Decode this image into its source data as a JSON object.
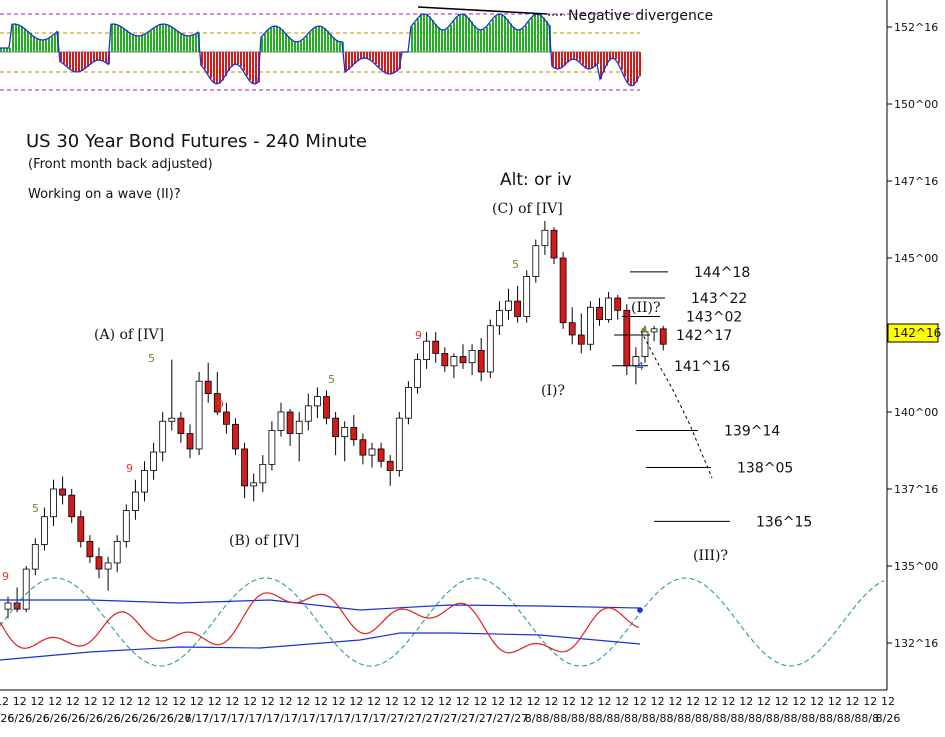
{
  "chart_data": {
    "type": "candlestick",
    "title": "US 30 Year Bond Futures - 240 Minute",
    "subtitle": "(Front month back adjusted)",
    "note": "Working on a wave (II)?",
    "current_price": "142^16",
    "y_ticks": [
      "152^16",
      "150^00",
      "147^16",
      "145^00",
      "142^16",
      "140^00",
      "137^16",
      "135^00",
      "132^16"
    ],
    "x_tick_top": "12",
    "x_tick_labels": [
      "6/26",
      "6/26",
      "6/26",
      "6/26",
      "6/26",
      "6/26",
      "6/26",
      "6/26",
      "6/26",
      "6/26",
      "6/26",
      "7/17",
      "7/17",
      "7/17",
      "7/17",
      "7/17",
      "7/17",
      "7/17",
      "7/17",
      "7/17",
      "7/17",
      "7/17",
      "7/27",
      "7/27",
      "7/27",
      "7/27",
      "7/27",
      "7/27",
      "7/27",
      "7/27",
      "8/8",
      "8/8",
      "8/8",
      "8/8",
      "8/8",
      "8/8",
      "8/8",
      "8/8",
      "8/8",
      "8/8",
      "8/8",
      "8/8",
      "8/8",
      "8/8",
      "8/8",
      "8/8",
      "8/8",
      "8/8",
      "8/8",
      "8/8",
      "8/26"
    ],
    "ylim": [
      131.5,
      153.5
    ],
    "candles": [
      [
        133.6,
        134.0,
        133.3,
        133.8
      ],
      [
        133.8,
        134.3,
        133.5,
        133.6
      ],
      [
        133.6,
        135.0,
        133.5,
        134.9
      ],
      [
        134.9,
        135.9,
        134.7,
        135.7
      ],
      [
        135.7,
        136.9,
        135.5,
        136.6
      ],
      [
        136.6,
        137.8,
        136.3,
        137.5
      ],
      [
        137.5,
        137.9,
        137.0,
        137.3
      ],
      [
        137.3,
        137.5,
        136.4,
        136.6
      ],
      [
        136.6,
        136.8,
        135.6,
        135.8
      ],
      [
        135.8,
        136.0,
        135.1,
        135.3
      ],
      [
        135.3,
        135.6,
        134.6,
        134.9
      ],
      [
        134.9,
        135.3,
        134.2,
        135.1
      ],
      [
        135.1,
        136.0,
        134.8,
        135.8
      ],
      [
        135.8,
        137.0,
        135.6,
        136.8
      ],
      [
        136.8,
        137.8,
        136.5,
        137.4
      ],
      [
        137.4,
        138.4,
        137.1,
        138.1
      ],
      [
        138.1,
        139.0,
        137.8,
        138.7
      ],
      [
        138.7,
        140.0,
        138.4,
        139.7
      ],
      [
        139.7,
        141.7,
        139.4,
        139.8
      ],
      [
        139.8,
        140.0,
        139.0,
        139.3
      ],
      [
        139.3,
        139.6,
        138.5,
        138.8
      ],
      [
        138.8,
        141.3,
        138.6,
        141.0
      ],
      [
        141.0,
        141.6,
        140.3,
        140.6
      ],
      [
        140.6,
        141.3,
        139.9,
        140.0
      ],
      [
        140.0,
        140.3,
        139.3,
        139.6
      ],
      [
        139.6,
        139.8,
        138.6,
        138.8
      ],
      [
        138.8,
        139.0,
        137.2,
        137.6
      ],
      [
        137.6,
        138.0,
        137.1,
        137.7
      ],
      [
        137.7,
        138.6,
        137.4,
        138.3
      ],
      [
        138.3,
        139.7,
        138.1,
        139.4
      ],
      [
        139.4,
        140.3,
        139.2,
        140.0
      ],
      [
        140.0,
        140.1,
        138.9,
        139.3
      ],
      [
        139.3,
        140.0,
        138.4,
        139.7
      ],
      [
        139.7,
        140.6,
        139.4,
        140.2
      ],
      [
        140.2,
        140.8,
        139.8,
        140.5
      ],
      [
        140.5,
        140.7,
        139.6,
        139.8
      ],
      [
        139.8,
        140.0,
        138.6,
        139.2
      ],
      [
        139.2,
        139.7,
        138.4,
        139.5
      ],
      [
        139.5,
        139.9,
        138.9,
        139.1
      ],
      [
        139.1,
        139.3,
        138.3,
        138.6
      ],
      [
        138.6,
        139.0,
        138.2,
        138.8
      ],
      [
        138.8,
        139.0,
        138.2,
        138.4
      ],
      [
        138.4,
        138.6,
        137.6,
        138.1
      ],
      [
        138.1,
        140.0,
        137.9,
        139.8
      ],
      [
        139.8,
        141.0,
        139.6,
        140.8
      ],
      [
        140.8,
        141.9,
        140.6,
        141.7
      ],
      [
        141.7,
        142.6,
        141.4,
        142.3
      ],
      [
        142.3,
        142.6,
        141.6,
        141.9
      ],
      [
        141.9,
        142.1,
        141.3,
        141.5
      ],
      [
        141.5,
        141.9,
        141.1,
        141.8
      ],
      [
        141.8,
        142.2,
        141.4,
        141.6
      ],
      [
        141.6,
        142.2,
        141.2,
        142.0
      ],
      [
        142.0,
        142.4,
        141.0,
        141.3
      ],
      [
        141.3,
        143.0,
        141.1,
        142.8
      ],
      [
        142.8,
        143.6,
        142.5,
        143.3
      ],
      [
        143.3,
        144.0,
        143.0,
        143.6
      ],
      [
        143.6,
        144.1,
        142.9,
        143.1
      ],
      [
        143.1,
        144.6,
        142.9,
        144.4
      ],
      [
        144.4,
        145.6,
        144.2,
        145.4
      ],
      [
        145.4,
        146.2,
        145.1,
        145.9
      ],
      [
        145.9,
        146.0,
        144.8,
        145.0
      ],
      [
        145.0,
        145.2,
        142.7,
        142.9
      ],
      [
        142.9,
        143.4,
        142.2,
        142.5
      ],
      [
        142.5,
        143.2,
        141.9,
        142.2
      ],
      [
        142.2,
        143.6,
        142.0,
        143.4
      ],
      [
        143.4,
        143.7,
        142.8,
        143.0
      ],
      [
        143.0,
        143.9,
        142.9,
        143.7
      ],
      [
        143.7,
        143.8,
        143.0,
        143.3
      ],
      [
        143.3,
        143.5,
        141.2,
        141.5
      ],
      [
        141.5,
        142.1,
        140.9,
        141.8
      ],
      [
        141.8,
        142.8,
        141.6,
        142.6
      ],
      [
        142.6,
        142.8,
        142.3,
        142.7
      ],
      [
        142.7,
        142.8,
        142.0,
        142.2
      ]
    ],
    "candle_spacing": 9.1,
    "candle_x0": 8,
    "levels": [
      {
        "label": "144^18",
        "y": 144.55,
        "x1": 630,
        "x2": 668
      },
      {
        "label": "143^22",
        "y": 143.7,
        "x1": 628,
        "x2": 665
      },
      {
        "label": "143^02",
        "y": 143.1,
        "x1": 622,
        "x2": 660
      },
      {
        "label": "142^17",
        "y": 142.5,
        "x1": 614,
        "x2": 650
      },
      {
        "label": "141^16",
        "y": 141.5,
        "x1": 612,
        "x2": 648
      },
      {
        "label": "139^14",
        "y": 139.4,
        "x1": 636,
        "x2": 698
      },
      {
        "label": "138^05",
        "y": 138.2,
        "x1": 646,
        "x2": 711
      },
      {
        "label": "136^15",
        "y": 136.45,
        "x1": 654,
        "x2": 730
      }
    ],
    "wave_labels": [
      {
        "text": "(A) of [IV]"
      },
      {
        "text": "(B) of [IV]"
      },
      {
        "text": "(C) of [IV]"
      },
      {
        "text": "Alt: or iv"
      },
      {
        "text": "(I)?"
      },
      {
        "text": "(II)?"
      },
      {
        "text": "(III)?"
      }
    ],
    "count_labels": [
      {
        "text": "5",
        "color": "#8b7d1e"
      },
      {
        "text": "5",
        "color": "#8b7d1e"
      },
      {
        "text": "5",
        "color": "#8b7d1e"
      },
      {
        "text": "5",
        "color": "#8b7d1e"
      },
      {
        "text": "9",
        "color": "#e03a2f"
      },
      {
        "text": "9",
        "color": "#e03a2f"
      },
      {
        "text": "9",
        "color": "#e03a2f"
      },
      {
        "text": "9",
        "color": "#e03a2f"
      },
      {
        "text": "4",
        "color": "#2a47d6"
      }
    ],
    "divergence_label": "Negative divergence",
    "colors": {
      "up_candle": "#ffffff",
      "down_candle": "#d41b1b",
      "hist_up": "#22b022",
      "hist_down": "#d41b1b",
      "osc_line": "#1b2fd6",
      "cycle": "#2a9aa0",
      "price_tag": "#ffff00"
    }
  }
}
